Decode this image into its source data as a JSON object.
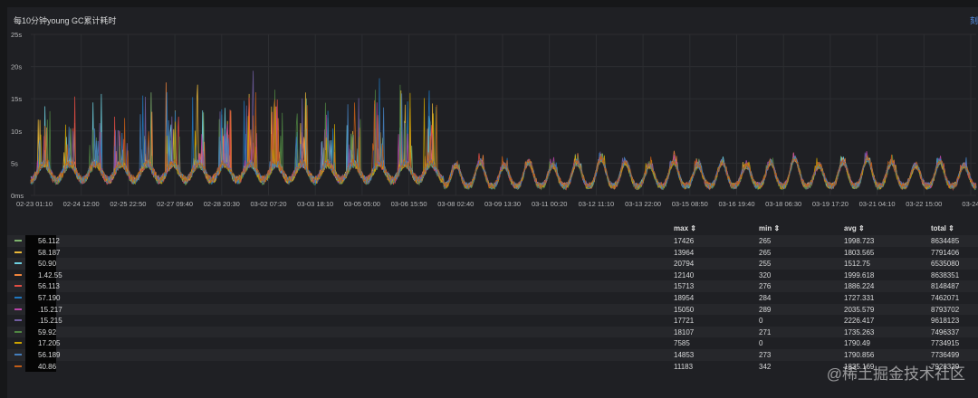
{
  "panel": {
    "title": "每10分钟young GC累计耗时",
    "link_text": "刻"
  },
  "chart_data": {
    "type": "line",
    "title": "每10分钟young GC累计耗时",
    "y_ticks": [
      "25s",
      "20s",
      "15s",
      "10s",
      "5s",
      "0ms"
    ],
    "ylim": [
      0,
      25
    ],
    "y_unit": "s",
    "grid": true,
    "x_ticks": [
      "02-23 01:10",
      "02-24 12:00",
      "02-25 22:50",
      "02-27 09:40",
      "02-28 20:30",
      "03-02 07:20",
      "03-03 18:10",
      "03-05 05:00",
      "03-06 15:50",
      "03-08 02:40",
      "03-09 13:30",
      "03-11 00:20",
      "03-12 11:10",
      "03-13 22:00",
      "03-15 08:50",
      "03-16 19:40",
      "03-18 06:30",
      "03-19 17:20",
      "03-21 04:10",
      "03-22 15:00",
      "03-24"
    ],
    "series_colors": [
      "#7eb26d",
      "#eab839",
      "#6ed0e0",
      "#ef843c",
      "#e24d42",
      "#1f78c1",
      "#ba43a9",
      "#705da0",
      "#508642",
      "#cca300",
      "#447ebc",
      "#c15c17"
    ],
    "daily_peaks_phase1": [
      11,
      14,
      13,
      12,
      15,
      19,
      14,
      13,
      16,
      14,
      12,
      13,
      14,
      15,
      15,
      16
    ],
    "daily_peaks_phase2": [
      5,
      5.5,
      5,
      5.5,
      5,
      5.5,
      6,
      5.5,
      5,
      5.5,
      5,
      5.5,
      5,
      5.5,
      6,
      5,
      5.5,
      6,
      5.5,
      5,
      5.5,
      5
    ]
  },
  "legend": {
    "headers": {
      "max": "max ⇕",
      "min": "min ⇕",
      "avg": "avg ⇕",
      "total": "total ⇕"
    },
    "rows": [
      {
        "name": "56.112",
        "color": "#7eb26d",
        "max": "17426",
        "min": "265",
        "avg": "1998.723",
        "total": "8634485"
      },
      {
        "name": "58.187",
        "color": "#eab839",
        "max": "13964",
        "min": "265",
        "avg": "1803.565",
        "total": "7791406"
      },
      {
        "name": "50.90",
        "color": "#6ed0e0",
        "max": "20794",
        "min": "255",
        "avg": "1512.75",
        "total": "6535080"
      },
      {
        "name": "1.42.55",
        "color": "#ef843c",
        "max": "12140",
        "min": "320",
        "avg": "1999.618",
        "total": "8638351"
      },
      {
        "name": "56.113",
        "color": "#e24d42",
        "max": "15713",
        "min": "276",
        "avg": "1886.224",
        "total": "8148487"
      },
      {
        "name": "57.190",
        "color": "#1f78c1",
        "max": "18954",
        "min": "284",
        "avg": "1727.331",
        "total": "7462071"
      },
      {
        "name": ".15.217",
        "color": "#ba43a9",
        "max": "15050",
        "min": "289",
        "avg": "2035.579",
        "total": "8793702"
      },
      {
        "name": ".15.215",
        "color": "#705da0",
        "max": "17721",
        "min": "0",
        "avg": "2226.417",
        "total": "9618123"
      },
      {
        "name": "59.92",
        "color": "#508642",
        "max": "18107",
        "min": "271",
        "avg": "1735.263",
        "total": "7496337"
      },
      {
        "name": "17.205",
        "color": "#cca300",
        "max": "7585",
        "min": "0",
        "avg": "1790.49",
        "total": "7734915"
      },
      {
        "name": "56.189",
        "color": "#447ebc",
        "max": "14853",
        "min": "273",
        "avg": "1790.856",
        "total": "7736499"
      },
      {
        "name": "40.86",
        "color": "#c15c17",
        "max": "11183",
        "min": "342",
        "avg": "1835.169",
        "total": "7928329"
      }
    ]
  },
  "watermark": "@稀土掘金技术社区"
}
